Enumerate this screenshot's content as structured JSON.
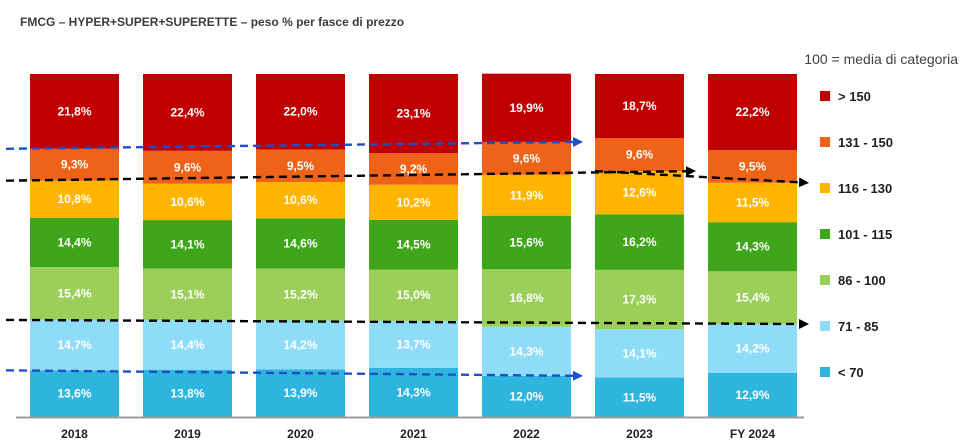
{
  "chart_data": {
    "type": "bar",
    "stacked": true,
    "title": "FMCG – HYPER+SUPER+SUPERETTE – peso % per fasce di prezzo",
    "note": "100 = media di categoria",
    "categories": [
      "2018",
      "2019",
      "2020",
      "2021",
      "2022",
      "2023",
      "FY 2024"
    ],
    "series": [
      {
        "name": "< 70",
        "color": "#2eb5de",
        "label_color": "#ffffff",
        "values": [
          13.6,
          13.8,
          13.9,
          14.3,
          12.0,
          11.5,
          12.9
        ],
        "labels": [
          "13,6%",
          "13,8%",
          "13,9%",
          "14,3%",
          "12,0%",
          "11,5%",
          "12,9%"
        ]
      },
      {
        "name": "71 - 85",
        "color": "#8fdcf8",
        "label_color": "#ffffff",
        "values": [
          14.7,
          14.4,
          14.2,
          13.7,
          14.3,
          14.1,
          14.2
        ],
        "labels": [
          "14,7%",
          "14,4%",
          "14,2%",
          "13,7%",
          "14,3%",
          "14,1%",
          "14,2%"
        ]
      },
      {
        "name": "86 - 100",
        "color": "#9bcf5a",
        "label_color": "#ffffff",
        "values": [
          15.4,
          15.1,
          15.2,
          15.0,
          16.8,
          17.3,
          15.4
        ],
        "labels": [
          "15,4%",
          "15,1%",
          "15,2%",
          "15,0%",
          "16,8%",
          "17,3%",
          "15,4%"
        ]
      },
      {
        "name": "101 - 115",
        "color": "#3fa51a",
        "label_color": "#ffffff",
        "values": [
          14.4,
          14.1,
          14.6,
          14.5,
          15.6,
          16.2,
          14.3
        ],
        "labels": [
          "14,4%",
          "14,1%",
          "14,6%",
          "14,5%",
          "15,6%",
          "16,2%",
          "14,3%"
        ]
      },
      {
        "name": "116 - 130",
        "color": "#ffb400",
        "label_color": "#ffffff",
        "values": [
          10.8,
          10.6,
          10.6,
          10.2,
          11.9,
          12.6,
          11.5
        ],
        "labels": [
          "10,8%",
          "10,6%",
          "10,6%",
          "10,2%",
          "11,9%",
          "12,6%",
          "11,5%"
        ]
      },
      {
        "name": "131 - 150",
        "color": "#ee6318",
        "label_color": "#ffffff",
        "values": [
          9.3,
          9.6,
          9.5,
          9.2,
          9.6,
          9.6,
          9.5
        ],
        "labels": [
          "9,3%",
          "9,6%",
          "9,5%",
          "9,2%",
          "9,6%",
          "9,6%",
          "9,5%"
        ]
      },
      {
        "name": "> 150",
        "color": "#c00000",
        "label_color": "#ffffff",
        "values": [
          21.8,
          22.4,
          22.0,
          23.1,
          19.9,
          18.7,
          22.2
        ],
        "labels": [
          "21,8%",
          "22,4%",
          "22,0%",
          "23,1%",
          "19,9%",
          "18,7%",
          "22,2%"
        ]
      }
    ],
    "ylim": [
      0,
      100
    ],
    "grid": false,
    "legend_placement": "right",
    "annotations": [
      {
        "style": "dashed-arrow",
        "color": "#1f4fc8",
        "from_category": "2018",
        "to_category": "2022",
        "at_boundary_between": [
          "131 - 150",
          "> 150"
        ]
      },
      {
        "style": "dashed-arrow",
        "color": "#1f4fc8",
        "from_category": "2018",
        "to_category": "2022",
        "at_boundary_between": [
          "< 70",
          "71 - 85"
        ]
      },
      {
        "style": "dashed-arrow",
        "color": "#000000",
        "from_category": "2018",
        "to_category": "2023",
        "at_boundary_between": [
          "116 - 130",
          "131 - 150"
        ]
      },
      {
        "style": "dashed-arrow",
        "color": "#000000",
        "from_category": "2023",
        "to_category": "FY 2024",
        "at_boundary_between": [
          "116 - 130",
          "131 - 150"
        ]
      },
      {
        "style": "dashed-arrow",
        "color": "#000000",
        "from_category": "2018",
        "to_category": "FY 2024",
        "at_boundary_between": [
          "71 - 85",
          "86 - 100"
        ]
      }
    ]
  }
}
